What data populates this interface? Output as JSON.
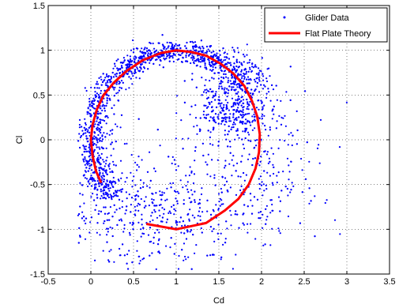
{
  "chart_data": {
    "type": "scatter",
    "xlabel": "Cd",
    "ylabel": "Cl",
    "xlim": [
      -0.5,
      3.5
    ],
    "ylim": [
      -1.5,
      1.5
    ],
    "grid": true,
    "legend_position": "top-right",
    "x_ticks": [
      "-0.5",
      "0",
      "0.5",
      "1",
      "1.5",
      "2",
      "2.5",
      "3",
      "3.5"
    ],
    "y_ticks": [
      "-1.5",
      "-1",
      "-0.5",
      "0",
      "0.5",
      "1",
      "1.5"
    ],
    "series": [
      {
        "name": "Glider Data",
        "kind": "scatter",
        "color": "#0000ff",
        "point_count": 5000,
        "approx_envelope": [
          {
            "x": -0.1,
            "y": 0.0
          },
          {
            "x": 0.0,
            "y": 0.3
          },
          {
            "x": 0.1,
            "y": 0.5
          },
          {
            "x": 0.3,
            "y": 0.75
          },
          {
            "x": 0.6,
            "y": 0.9
          },
          {
            "x": 1.0,
            "y": 0.95
          },
          {
            "x": 1.4,
            "y": 0.85
          },
          {
            "x": 1.8,
            "y": 0.55
          },
          {
            "x": 2.1,
            "y": 0.2
          },
          {
            "x": 2.2,
            "y": -0.1
          },
          {
            "x": 2.1,
            "y": -0.4
          },
          {
            "x": 1.9,
            "y": -0.7
          },
          {
            "x": 1.7,
            "y": -1.0
          },
          {
            "x": 0.1,
            "y": -0.3
          },
          {
            "x": 0.2,
            "y": -0.5
          }
        ]
      },
      {
        "name": "Flat Plate Theory",
        "kind": "line",
        "color": "#ff0000",
        "x": [
          0.12,
          0.06,
          0.02,
          0.0,
          0.02,
          0.07,
          0.15,
          0.27,
          0.42,
          0.61,
          0.82,
          1.0,
          1.18,
          1.35,
          1.52,
          1.67,
          1.8,
          1.89,
          1.95,
          1.98,
          1.97,
          1.93,
          1.85,
          1.73,
          1.57,
          1.35,
          1.0,
          0.65
        ],
        "y": [
          -0.48,
          -0.35,
          -0.18,
          0.0,
          0.17,
          0.34,
          0.5,
          0.64,
          0.77,
          0.89,
          0.97,
          1.0,
          0.98,
          0.94,
          0.85,
          0.74,
          0.6,
          0.43,
          0.26,
          0.06,
          -0.14,
          -0.32,
          -0.5,
          -0.66,
          -0.79,
          -0.93,
          -1.0,
          -0.94
        ]
      }
    ]
  }
}
